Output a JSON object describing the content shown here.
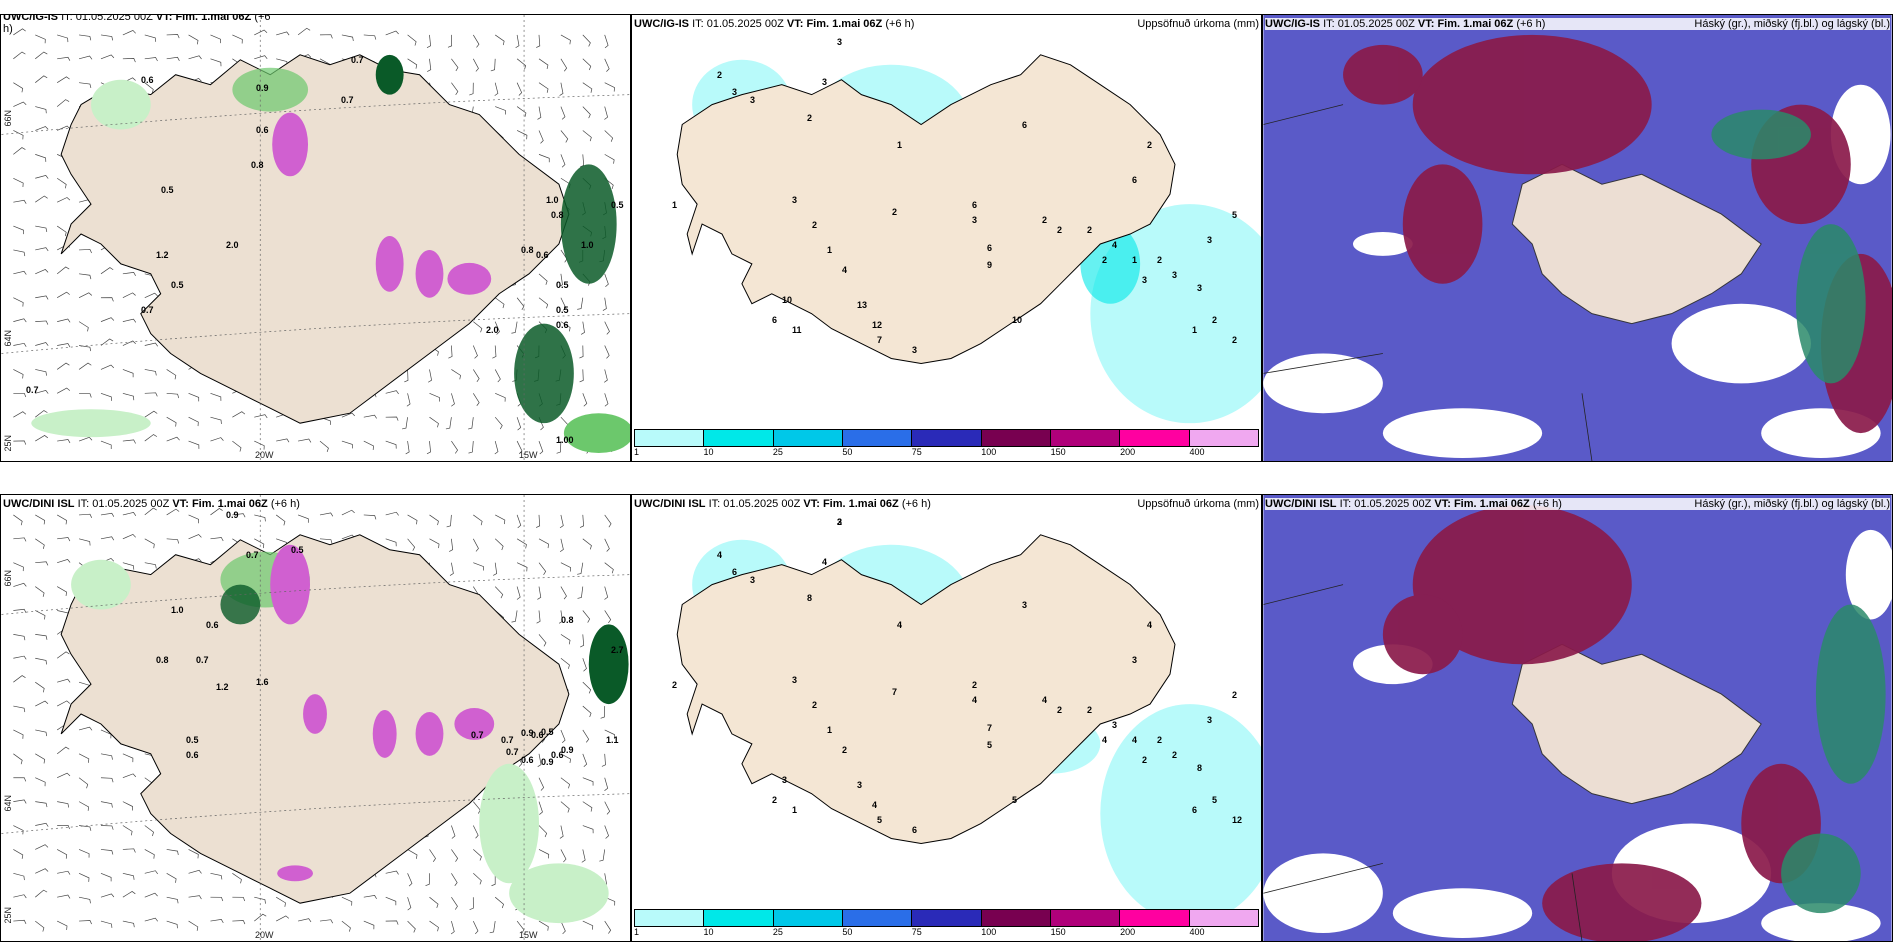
{
  "rows": [
    {
      "panels": [
        {
          "model": "UWC/IG-IS",
          "it_label": "IT:",
          "it_value": "01.05.2025 00Z",
          "vt_label": "VT:",
          "vt_value": "Fim. 1.mai 06Z",
          "lead": "(+6",
          "lead_wrap": "h)",
          "right_title": "",
          "lon_labels": [
            "20W",
            "15W"
          ],
          "lat_labels": [
            "66N",
            "64N",
            "25N"
          ],
          "values": [
            "0.7",
            "0.6",
            "0.9",
            "0.7",
            "0.6",
            "0.5",
            "0.8",
            "1.2",
            "0.5",
            "0.7",
            "2.0",
            "2.0",
            "0.5",
            "0.5",
            "0.6",
            "1.0",
            "0.8",
            "0.6",
            "0.8",
            "1.0",
            "0.5",
            "0.7",
            "1.00"
          ]
        },
        {
          "model": "UWC/IG-IS",
          "it_label": "IT:",
          "it_value": "01.05.2025 00Z",
          "vt_label": "VT:",
          "vt_value": "Fim. 1.mai 06Z",
          "lead": "(+6 h)",
          "right_title": "Uppsöfnuð úrkoma (mm)",
          "values": [
            "3",
            "2",
            "3",
            "3",
            "3",
            "2",
            "1",
            "3",
            "1",
            "2",
            "1",
            "4",
            "2",
            "6",
            "3",
            "2",
            "2",
            "2",
            "4",
            "1",
            "2",
            "3",
            "3",
            "2",
            "2",
            "1",
            "3",
            "2",
            "6",
            "9",
            "10",
            "10",
            "6",
            "11",
            "13",
            "12",
            "7",
            "3",
            "6",
            "6",
            "2",
            "3",
            "5"
          ]
        },
        {
          "model": "UWC/IG-IS",
          "it_label": "IT:",
          "it_value": "01.05.2025 00Z",
          "vt_label": "VT:",
          "vt_value": "Fim. 1.mai 06Z",
          "lead": "(+6 h)",
          "right_title": "Háský (gr.), miðský (fj.bl.) og lágský (bl.)"
        }
      ]
    },
    {
      "panels": [
        {
          "model": "UWC/DINI ISL",
          "it_label": "IT:",
          "it_value": "01.05.2025 00Z",
          "vt_label": "VT:",
          "vt_value": "Fim. 1.mai 06Z",
          "lead": "(+6 h)",
          "right_title": "",
          "lon_labels": [
            "20W",
            "15W"
          ],
          "lat_labels": [
            "66N",
            "64N",
            "25N"
          ],
          "values": [
            "0.9",
            "0.7",
            "0.5",
            "1.0",
            "0.6",
            "0.8",
            "0.7",
            "1.2",
            "1.6",
            "0.5",
            "0.6",
            "0.6",
            "0.7",
            "0.7",
            "0.6",
            "0.9",
            "0.5",
            "0.9",
            "0.7",
            "0.9",
            "1.1",
            "0.6",
            "0.8",
            "2.7"
          ]
        },
        {
          "model": "UWC/DINI ISL",
          "it_label": "IT:",
          "it_value": "01.05.2025 00Z",
          "vt_label": "VT:",
          "vt_value": "Fim. 1.mai 06Z",
          "lead": "(+6 h)",
          "right_title": "Uppsöfnuð úrkoma (mm)",
          "values": [
            "2",
            "4",
            "6",
            "3",
            "4",
            "8",
            "4",
            "3",
            "2",
            "2",
            "1",
            "2",
            "7",
            "2",
            "4",
            "4",
            "2",
            "2",
            "3",
            "4",
            "2",
            "2",
            "8",
            "5",
            "12",
            "6",
            "2",
            "4",
            "7",
            "5",
            "5",
            "3",
            "2",
            "1",
            "3",
            "4",
            "5",
            "6",
            "3",
            "3",
            "4",
            "3",
            "2",
            "3"
          ]
        },
        {
          "model": "UWC/DINI ISL",
          "it_label": "IT:",
          "it_value": "01.05.2025 00Z",
          "vt_label": "VT:",
          "vt_value": "Fim. 1.mai 06Z",
          "lead": "(+6 h)",
          "right_title": "Háský (gr.), miðský (fj.bl.) og lágský (bl.)"
        }
      ]
    }
  ],
  "colorbar": {
    "ticks": [
      "1",
      "10",
      "25",
      "50",
      "75",
      "100",
      "150",
      "200",
      "400"
    ],
    "colors": [
      "#b8fafa",
      "#00e8e8",
      "#00c8e8",
      "#2a6ee8",
      "#2a2ab8",
      "#780050",
      "#b0007a",
      "#ff00a0",
      "#f0a8f0"
    ]
  },
  "colors": {
    "land": "#f4e6d4",
    "land_wind_map": "#ece0d2",
    "precip_light": "#c8f0c8",
    "precip_med": "#6cc86c",
    "precip_dark": "#0a5a28",
    "snow": "#d060d0",
    "cloud_low": "#5a5ac8",
    "cloud_mid": "#8a1a4a",
    "cloud_high": "#2a8a6a",
    "precip_cyan": "#b8fafa"
  }
}
